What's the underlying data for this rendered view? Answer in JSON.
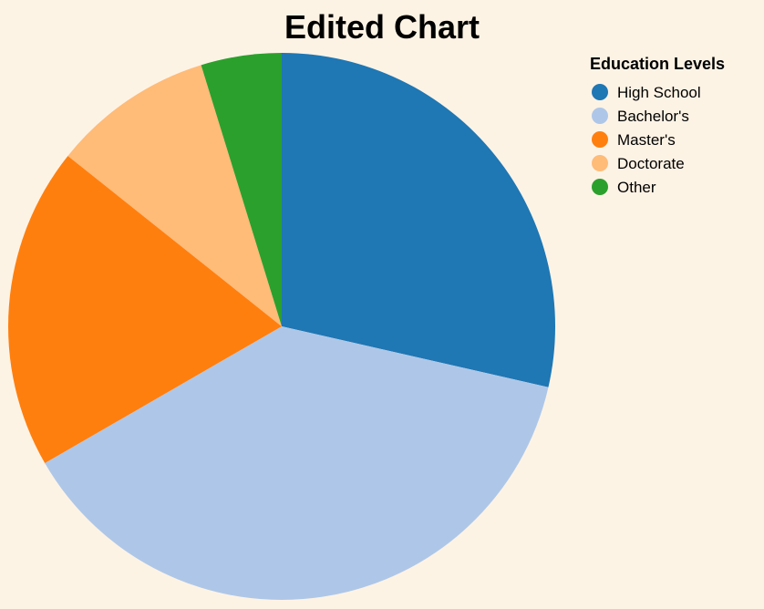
{
  "chart_data": {
    "type": "pie",
    "title": "Edited Chart",
    "legend_title": "Education Levels",
    "legend_position": "top-right",
    "categories": [
      "High School",
      "Bachelor's",
      "Master's",
      "Doctorate",
      "Other"
    ],
    "values": [
      30,
      40,
      20,
      10,
      5
    ],
    "colors": [
      "#1f77b4",
      "#aec7e8",
      "#ff7f0e",
      "#ffbb78",
      "#2ca02c"
    ]
  }
}
